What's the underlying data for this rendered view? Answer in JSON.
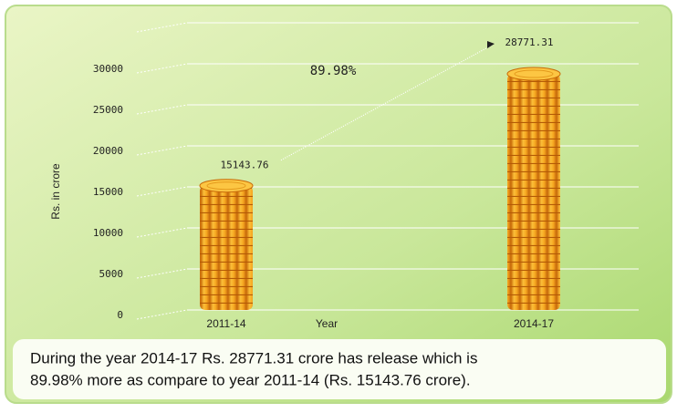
{
  "chart_data": {
    "type": "bar",
    "categories": [
      "2011-14",
      "2014-17"
    ],
    "values": [
      15143.76,
      28771.31
    ],
    "color": "#f0a21c",
    "xlabel": "Year",
    "ylabel": "Rs. in crore",
    "annotation": "89.98%",
    "ylim": [
      0,
      35000
    ],
    "yticks": [
      0,
      5000,
      10000,
      15000,
      20000,
      25000,
      30000
    ],
    "grid": true,
    "caption": [
      "During the year 2014-17 Rs. 28771.31 crore has release which is",
      "89.98% more as compare to year 2011-14 (Rs. 15143.76 crore)."
    ]
  }
}
